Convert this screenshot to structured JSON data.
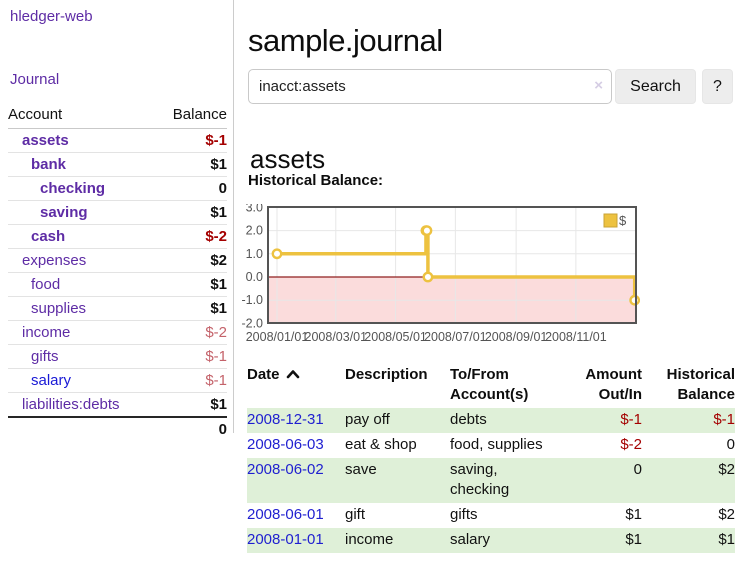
{
  "colors": {
    "link_purple": "#5e2ca5",
    "link_blue": "#1a1ad6",
    "negative_strong": "#a40000",
    "negative_weak": "#c4626a",
    "stripe_green": "#dff0d8",
    "chart_line": "#edc240",
    "chart_negative_fill": "#fbdcdc",
    "chart_zero_line": "#8f1f1f",
    "chart_border": "#545454",
    "chart_grid": "#e7e7e7",
    "axis_text": "#545454"
  },
  "sidebar": {
    "app_title": "hledger-web",
    "journal_label": "Journal",
    "accounts_header": {
      "account": "Account",
      "balance": "Balance"
    },
    "accounts": [
      {
        "name": "assets",
        "balance": "$-1",
        "indent": 0,
        "in_scope": true,
        "neg": "strong"
      },
      {
        "name": "bank",
        "balance": "$1",
        "indent": 1,
        "in_scope": true,
        "neg": "none"
      },
      {
        "name": "checking",
        "balance": "0",
        "indent": 2,
        "in_scope": true,
        "neg": "none"
      },
      {
        "name": "saving",
        "balance": "$1",
        "indent": 2,
        "in_scope": true,
        "neg": "none"
      },
      {
        "name": "cash",
        "balance": "$-2",
        "indent": 1,
        "in_scope": true,
        "neg": "strong"
      },
      {
        "name": "expenses",
        "balance": "$2",
        "indent": 0,
        "in_scope": false,
        "neg": "none"
      },
      {
        "name": "food",
        "balance": "$1",
        "indent": 1,
        "in_scope": false,
        "neg": "none"
      },
      {
        "name": "supplies",
        "balance": "$1",
        "indent": 1,
        "in_scope": false,
        "neg": "none"
      },
      {
        "name": "income",
        "balance": "$-2",
        "indent": 0,
        "in_scope": false,
        "neg": "weak"
      },
      {
        "name": "gifts",
        "balance": "$-1",
        "indent": 1,
        "in_scope": false,
        "neg": "weak"
      },
      {
        "name": "salary",
        "balance": "$-1",
        "indent": 1,
        "in_scope": false,
        "neg": "weak",
        "unvisited": true
      },
      {
        "name": "liabilities:debts",
        "balance": "$1",
        "indent": 0,
        "in_scope": false,
        "neg": "none"
      }
    ],
    "total": "0"
  },
  "main": {
    "title": "sample.journal",
    "search": {
      "value": "inacct:assets",
      "clear_icon": "×",
      "button_label": "Search",
      "help_label": "?"
    },
    "account_heading": "assets",
    "chart_label": "Historical Balance:"
  },
  "chart_data": {
    "type": "line",
    "step": true,
    "markers": true,
    "title": "Historical Balance:",
    "legend": {
      "label": "$",
      "position": "top-right"
    },
    "ylim": [
      -2.0,
      3.0
    ],
    "yticks": [
      3.0,
      2.0,
      1.0,
      0.0,
      -1.0,
      -2.0
    ],
    "xticks": [
      "2008/01/01",
      "2008/03/01",
      "2008/05/01",
      "2008/07/01",
      "2008/09/01",
      "2008/11/01"
    ],
    "grid": true,
    "negative_region_below": 0,
    "series": [
      {
        "name": "$",
        "points": [
          {
            "date": "2008-01-01",
            "value": 1
          },
          {
            "date": "2008-06-01",
            "value": 2
          },
          {
            "date": "2008-06-02",
            "value": 2
          },
          {
            "date": "2008-06-03",
            "value": 0
          },
          {
            "date": "2008-12-31",
            "value": -1
          }
        ]
      }
    ]
  },
  "register": {
    "headers": {
      "date": "Date",
      "description": "Description",
      "accounts": "To/From Account(s)",
      "amount": "Amount Out/In",
      "balance": "Historical Balance"
    },
    "rows": [
      {
        "date": "2008-12-31",
        "description": "pay off",
        "accounts": "debts",
        "amount": "$-1",
        "balance": "$-1"
      },
      {
        "date": "2008-06-03",
        "description": "eat & shop",
        "accounts": "food, supplies",
        "amount": "$-2",
        "balance": "0"
      },
      {
        "date": "2008-06-02",
        "description": "save",
        "accounts": "saving,\nchecking",
        "amount": "0",
        "balance": "$2"
      },
      {
        "date": "2008-06-01",
        "description": "gift",
        "accounts": "gifts",
        "amount": "$1",
        "balance": "$2"
      },
      {
        "date": "2008-01-01",
        "description": "income",
        "accounts": "salary",
        "amount": "$1",
        "balance": "$1"
      }
    ]
  }
}
